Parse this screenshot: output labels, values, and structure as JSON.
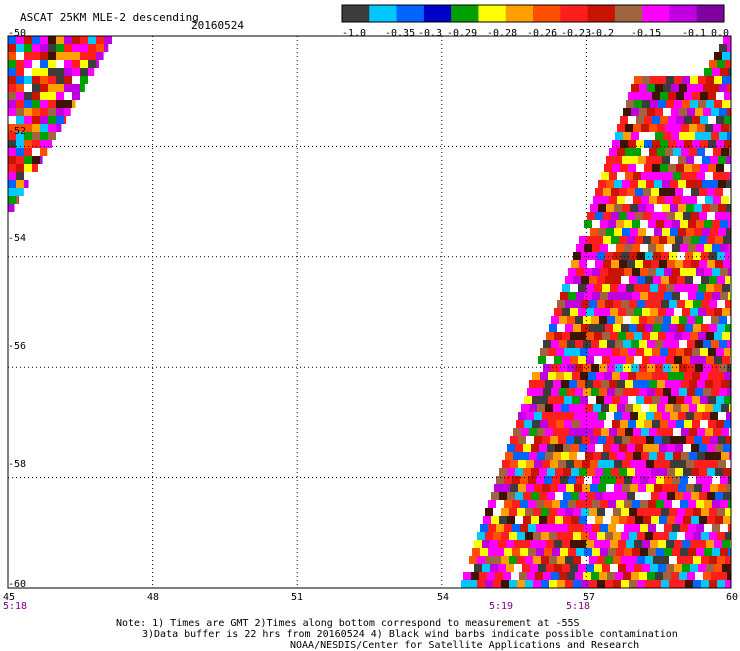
{
  "header": {
    "title": "ASCAT 25KM MLE-2 descending",
    "date": "20160524"
  },
  "colorbar": {
    "colors": [
      "#3c3c3c",
      "#00c8ff",
      "#0064ff",
      "#0000c8",
      "#00a000",
      "#ffff00",
      "#ffa000",
      "#ff5000",
      "#ff1e1e",
      "#c81400",
      "#a06440",
      "#ff00ff",
      "#c000e0",
      "#8000a0"
    ],
    "labels": [
      "-1.0",
      "-0.35",
      "-0.3",
      "-0.29",
      "-0.28",
      "-0.26",
      "-0.23",
      "-0.2",
      "-0.15",
      "-0.1",
      "0.0"
    ]
  },
  "map": {
    "lon_labels": [
      "45",
      "48",
      "51",
      "54",
      "57",
      "60"
    ],
    "lat_labels": [
      "-50",
      "-52",
      "-54",
      "-56",
      "-58",
      "-60"
    ],
    "lon_range": [
      45,
      60
    ],
    "lat_range": [
      -50,
      -60
    ],
    "gridlines": "dotted",
    "swath_palette": [
      "#ff00ff",
      "#ff00ff",
      "#ff00ff",
      "#ff1e1e",
      "#ff1e1e",
      "#ff1e1e",
      "#ff5000",
      "#ffa000",
      "#ffff00",
      "#a06440",
      "#3c1400",
      "#c81400",
      "#ffffff",
      "#00a000",
      "#0064ff",
      "#00c8ff",
      "#c000e0",
      "#3c3c3c"
    ]
  },
  "time_labels": [
    {
      "text": "5:18",
      "lon": 45
    },
    {
      "text": "5:19",
      "lon": 55.9
    },
    {
      "text": "5:18",
      "lon": 57.3
    }
  ],
  "notes": [
    "Note: 1) Times are GMT 2)Times along bottom correspond to measurement at -55S",
    "3)Data buffer is 22 hrs from 20160524 4) Black wind barbs indicate possible contamination",
    "NOAA/NESDIS/Center for Satellite Applications and Research"
  ]
}
